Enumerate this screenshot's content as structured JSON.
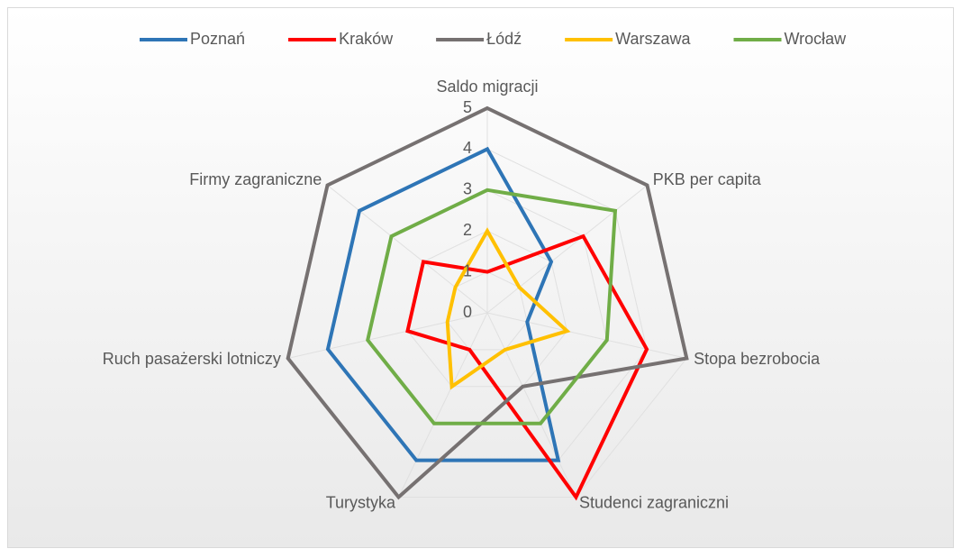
{
  "chart_data": {
    "type": "radar",
    "categories": [
      "Saldo migracji",
      "PKB per capita",
      "Stopa bezrobocia",
      "Studenci zagraniczni",
      "Turystyka",
      "Ruch pasażerski lotniczy",
      "Firmy zagraniczne"
    ],
    "series": [
      {
        "name": "Poznań",
        "color": "#2e75b6",
        "values": [
          4,
          2,
          1,
          4,
          4,
          4,
          4
        ]
      },
      {
        "name": "Kraków",
        "color": "#ff0000",
        "values": [
          1,
          3,
          4,
          5,
          1,
          2,
          2
        ]
      },
      {
        "name": "Łódź",
        "color": "#767171",
        "values": [
          5,
          5,
          5,
          2,
          5,
          5,
          5
        ]
      },
      {
        "name": "Warszawa",
        "color": "#ffc000",
        "values": [
          2,
          1,
          2,
          1,
          2,
          1,
          1
        ]
      },
      {
        "name": "Wrocław",
        "color": "#70ad47",
        "values": [
          3,
          4,
          3,
          3,
          3,
          3,
          3
        ]
      }
    ],
    "ylim": [
      0,
      5
    ],
    "yticks": [
      0,
      1,
      2,
      3,
      4,
      5
    ],
    "grid": true,
    "legend": "top"
  }
}
